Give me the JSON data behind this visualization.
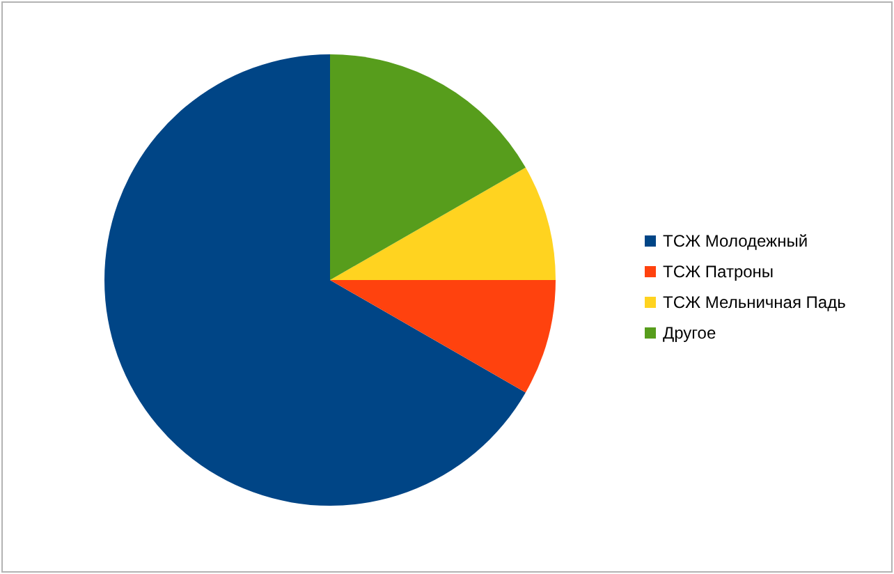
{
  "chart_data": {
    "type": "pie",
    "categories": [
      "ТСЖ Молодежный",
      "ТСЖ Патроны",
      "ТСЖ Мельничная Падь",
      "Другое"
    ],
    "values": [
      66.7,
      8.3,
      8.3,
      16.7
    ],
    "colors": [
      "#004586",
      "#ff420e",
      "#ffd320",
      "#579d1c"
    ],
    "legend": "right"
  }
}
